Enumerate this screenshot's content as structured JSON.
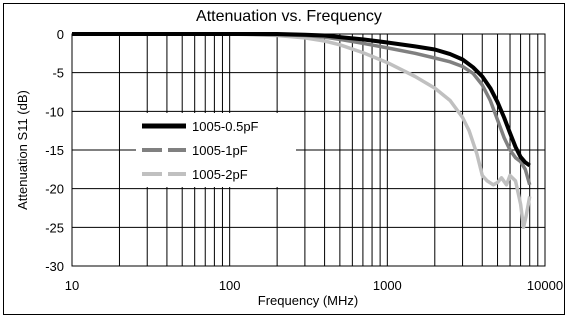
{
  "chart_data": {
    "type": "line",
    "title": "Attenuation vs. Frequency",
    "xlabel": "Frequency (MHz)",
    "ylabel": "Attenuation S11 (dB)",
    "xscale": "log",
    "xlim": [
      10,
      10000
    ],
    "ylim": [
      -30,
      0
    ],
    "x_ticks": [
      "10",
      "100",
      "1000",
      "10000"
    ],
    "y_ticks": [
      "0",
      "-5",
      "-10",
      "-15",
      "-20",
      "-25",
      "-30"
    ],
    "grid": true,
    "legend_position": "middle-left",
    "series": [
      {
        "name": "1005-0.5pF",
        "color": "#000000",
        "x": [
          10,
          20,
          50,
          100,
          200,
          300,
          400,
          500,
          700,
          1000,
          1500,
          2000,
          2500,
          3000,
          3500,
          4000,
          4500,
          5000,
          5500,
          6000,
          6500,
          7000,
          7500,
          8000
        ],
        "y": [
          0,
          0,
          0,
          0,
          0,
          -0.1,
          -0.2,
          -0.4,
          -0.7,
          -1.1,
          -1.6,
          -2.0,
          -2.6,
          -3.3,
          -4.3,
          -5.5,
          -7.0,
          -8.8,
          -10.8,
          -12.8,
          -14.6,
          -15.9,
          -16.6,
          -17.0
        ]
      },
      {
        "name": "1005-1pF",
        "color": "#808080",
        "x": [
          10,
          20,
          50,
          100,
          200,
          300,
          400,
          500,
          700,
          1000,
          1500,
          2000,
          2500,
          3000,
          3500,
          4000,
          4500,
          5000,
          5500,
          6000,
          6500,
          7000,
          7500,
          8000
        ],
        "y": [
          0,
          0,
          0,
          0,
          -0.1,
          -0.2,
          -0.4,
          -0.7,
          -1.2,
          -1.8,
          -2.5,
          -3.1,
          -3.6,
          -4.2,
          -5.1,
          -6.6,
          -8.6,
          -11.1,
          -13.4,
          -15.0,
          -16.0,
          -16.5,
          -17.5,
          -19.5
        ]
      },
      {
        "name": "1005-2pF",
        "color": "#c0c0c0",
        "x": [
          10,
          20,
          50,
          100,
          200,
          300,
          400,
          500,
          700,
          1000,
          1500,
          2000,
          2500,
          3000,
          3300,
          3700,
          4000,
          4300,
          4700,
          5000,
          5300,
          5700,
          6000,
          6500,
          7000,
          7300,
          7600,
          8000
        ],
        "y": [
          0,
          0,
          0,
          0,
          -0.2,
          -0.5,
          -0.9,
          -1.4,
          -2.4,
          -3.7,
          -5.5,
          -7.0,
          -8.6,
          -10.8,
          -12.5,
          -15.5,
          -18.3,
          -19.0,
          -19.5,
          -19.2,
          -18.6,
          -19.5,
          -18.3,
          -19.0,
          -22.0,
          -25.0,
          -23.5,
          -21.0
        ]
      }
    ]
  }
}
